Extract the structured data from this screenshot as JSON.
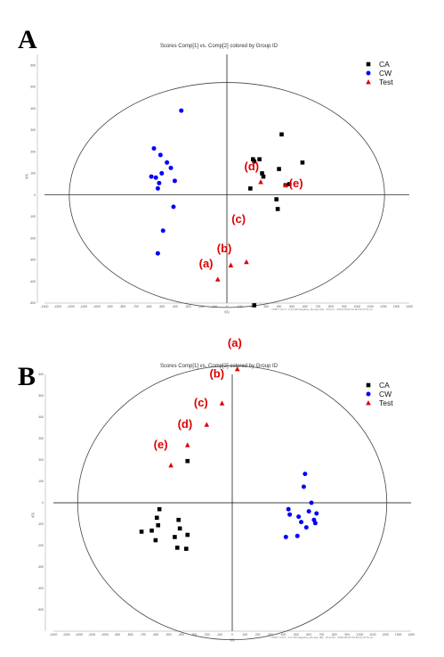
{
  "panels": [
    {
      "label": "A",
      "chart_data": {
        "type": "scatter",
        "title": "Scores Comp[1] vs. Comp[2] colored by Group ID",
        "xlabel": "t[1]",
        "ylabel": "t[2]",
        "xlim": [
          -1400,
          1400
        ],
        "ylim": [
          -500,
          650
        ],
        "xticks": [
          -1400,
          -1300,
          -1200,
          -1100,
          -1000,
          -900,
          -800,
          -700,
          -600,
          -500,
          -400,
          -300,
          -200,
          -100,
          0,
          100,
          200,
          300,
          400,
          500,
          600,
          700,
          800,
          900,
          1000,
          1100,
          1200,
          1300,
          1400
        ],
        "yticks": [
          -500,
          -400,
          -300,
          -200,
          -100,
          0,
          100,
          200,
          300,
          400,
          500,
          600
        ],
        "grid": false,
        "legend_position": "top-right",
        "ellipse": {
          "rx": 1210,
          "ry": 520
        },
        "series": [
          {
            "name": "CA",
            "marker": "square",
            "color": "#000000",
            "points": [
              [
                180,
                30
              ],
              [
                200,
                165
              ],
              [
                210,
                155
              ],
              [
                250,
                165
              ],
              [
                270,
                100
              ],
              [
                280,
                85
              ],
              [
                210,
                -510
              ],
              [
                380,
                -20
              ],
              [
                390,
                -65
              ],
              [
                400,
                120
              ],
              [
                420,
                280
              ],
              [
                450,
                45
              ],
              [
                480,
                50
              ],
              [
                580,
                150
              ]
            ]
          },
          {
            "name": "CW",
            "marker": "circle",
            "color": "#0000ff",
            "points": [
              [
                -560,
                215
              ],
              [
                -530,
                30
              ],
              [
                -520,
                55
              ],
              [
                -510,
                185
              ],
              [
                -500,
                100
              ],
              [
                -490,
                -165
              ],
              [
                -460,
                150
              ],
              [
                -430,
                125
              ],
              [
                -410,
                -55
              ],
              [
                -400,
                65
              ],
              [
                -350,
                390
              ],
              [
                -580,
                85
              ],
              [
                -545,
                80
              ],
              [
                -530,
                -270
              ]
            ]
          },
          {
            "name": "Test",
            "marker": "triangle",
            "color": "#e00000",
            "points": [
              [
                -70,
                -390
              ],
              [
                30,
                -325
              ],
              [
                150,
                -310
              ],
              [
                260,
                60
              ],
              [
                450,
                45
              ]
            ]
          }
        ],
        "annotations": [
          {
            "text": "(a)",
            "x": -160,
            "y": -335
          },
          {
            "text": "(b)",
            "x": -20,
            "y": -265
          },
          {
            "text": "(c)",
            "x": 90,
            "y": -130
          },
          {
            "text": "(d)",
            "x": 190,
            "y": 115
          },
          {
            "text": "(e)",
            "x": 530,
            "y": 35
          }
        ],
        "footer": "UNIFY 3.0.3 - 0.0-CW-Negative_Re.app (M) - PCA-X - 2019-05-03 22:40:53 (UTC+1)"
      }
    },
    {
      "label": "B",
      "chart_data": {
        "type": "scatter",
        "title": "Scores Comp[1] vs. Comp[2] colored by Group ID",
        "xlabel": "t[1]",
        "ylabel": "t[2]",
        "xlim": [
          -1400,
          1400
        ],
        "ylim": [
          -600,
          600
        ],
        "xticks": [
          -1400,
          -1300,
          -1200,
          -1100,
          -1000,
          -900,
          -800,
          -700,
          -600,
          -500,
          -400,
          -300,
          -200,
          -100,
          0,
          100,
          200,
          300,
          400,
          500,
          600,
          700,
          800,
          900,
          1000,
          1100,
          1200,
          1300,
          1400
        ],
        "yticks": [
          -500,
          -400,
          -300,
          -200,
          -100,
          0,
          100,
          200,
          300,
          400,
          500,
          600
        ],
        "grid": false,
        "legend_position": "top-right",
        "ellipse": {
          "rx": 1210,
          "ry": 640
        },
        "series": [
          {
            "name": "CA",
            "marker": "square",
            "color": "#000000",
            "points": [
              [
                -710,
                -135
              ],
              [
                -630,
                -130
              ],
              [
                -600,
                -175
              ],
              [
                -590,
                -70
              ],
              [
                -580,
                -105
              ],
              [
                -570,
                -30
              ],
              [
                -450,
                -160
              ],
              [
                -430,
                -210
              ],
              [
                -420,
                -80
              ],
              [
                -410,
                -120
              ],
              [
                -360,
                -215
              ],
              [
                -350,
                -150
              ],
              [
                -350,
                195
              ]
            ]
          },
          {
            "name": "CW",
            "marker": "circle",
            "color": "#0000ff",
            "points": [
              [
                420,
                -160
              ],
              [
                440,
                -30
              ],
              [
                450,
                -55
              ],
              [
                510,
                -155
              ],
              [
                520,
                -65
              ],
              [
                540,
                -90
              ],
              [
                560,
                75
              ],
              [
                570,
                135
              ],
              [
                580,
                -115
              ],
              [
                600,
                -40
              ],
              [
                620,
                0
              ],
              [
                640,
                -80
              ],
              [
                650,
                -95
              ],
              [
                660,
                -50
              ]
            ]
          },
          {
            "name": "Test",
            "marker": "triangle",
            "color": "#e00000",
            "points": [
              [
                -480,
                175
              ],
              [
                -350,
                270
              ],
              [
                -200,
                365
              ],
              [
                -80,
                465
              ],
              [
                40,
                625
              ]
            ]
          }
        ],
        "annotations": [
          {
            "text": "(a)",
            "x": 20,
            "y": 730
          },
          {
            "text": "(b)",
            "x": -120,
            "y": 585
          },
          {
            "text": "(c)",
            "x": -245,
            "y": 450
          },
          {
            "text": "(d)",
            "x": -370,
            "y": 350
          },
          {
            "text": "(e)",
            "x": -560,
            "y": 255
          }
        ],
        "footer": "UNIFY 3.0.3 - 0.0-CW-Negative_Re.app (M) - PLS-DA - 2019-05-03 22:53:14 (UTC+1)"
      }
    }
  ]
}
